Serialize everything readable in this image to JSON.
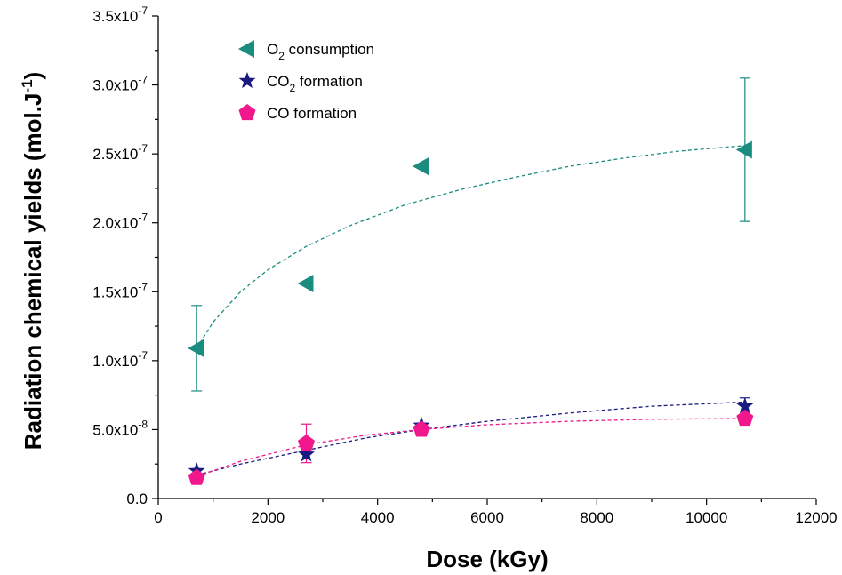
{
  "chart_data": {
    "type": "scatter",
    "xlabel": "Dose (kGy)",
    "ylabel": {
      "main": "Radiation chemical yields (mol.J",
      "sup": "-1",
      "tail": ")"
    },
    "xlim": [
      0,
      12000
    ],
    "ylim": [
      0,
      3.5e-07
    ],
    "x_ticks": [
      0,
      2000,
      4000,
      6000,
      8000,
      10000,
      12000
    ],
    "x_tick_labels": [
      "0",
      "2000",
      "4000",
      "6000",
      "8000",
      "10000",
      "12000"
    ],
    "y_ticks": [
      0,
      5e-08,
      1e-07,
      1.5e-07,
      2e-07,
      2.5e-07,
      3e-07,
      3.5e-07
    ],
    "y_tick_labels": [
      {
        "main": "0.0",
        "sup": ""
      },
      {
        "main": "5.0x10",
        "sup": "-8"
      },
      {
        "main": "1.0x10",
        "sup": "-7"
      },
      {
        "main": "1.5x10",
        "sup": "-7"
      },
      {
        "main": "2.0x10",
        "sup": "-7"
      },
      {
        "main": "2.5x10",
        "sup": "-7"
      },
      {
        "main": "3.0x10",
        "sup": "-7"
      },
      {
        "main": "3.5x10",
        "sup": "-7"
      }
    ],
    "grid": false,
    "legend_position": "top-left",
    "series": [
      {
        "name": "O2 consumption",
        "label_parts": [
          "O",
          "2",
          " consumption"
        ],
        "marker": "left-triangle",
        "color": "#1a8c80",
        "x": [
          700,
          2700,
          4800,
          10700
        ],
        "y": [
          1.09e-07,
          1.56e-07,
          2.41e-07,
          2.53e-07
        ],
        "err": [
          3.1e-08,
          null,
          null,
          5.2e-08
        ],
        "fit": {
          "x": [
            700,
            1000,
            1500,
            2000,
            2700,
            3500,
            4500,
            5500,
            6500,
            7500,
            8500,
            9500,
            10700
          ],
          "y": [
            1.09e-07,
            1.28e-07,
            1.5e-07,
            1.66e-07,
            1.83e-07,
            1.98e-07,
            2.13e-07,
            2.24e-07,
            2.33e-07,
            2.41e-07,
            2.47e-07,
            2.52e-07,
            2.56e-07
          ]
        }
      },
      {
        "name": "CO2 formation",
        "label_parts": [
          "CO",
          "2",
          " formation"
        ],
        "marker": "star",
        "color": "#1a1a80",
        "x": [
          700,
          2700,
          4800,
          10700
        ],
        "y": [
          2e-08,
          3.2e-08,
          5.3e-08,
          6.7e-08
        ],
        "err": [
          null,
          null,
          null,
          6e-09
        ],
        "fit": {
          "x": [
            700,
            1500,
            2700,
            3800,
            4800,
            6000,
            7500,
            9000,
            10700
          ],
          "y": [
            1.7e-08,
            2.5e-08,
            3.5e-08,
            4.4e-08,
            5e-08,
            5.6e-08,
            6.2e-08,
            6.7e-08,
            7e-08
          ]
        }
      },
      {
        "name": "CO formation",
        "label_parts": [
          "CO formation",
          "",
          ""
        ],
        "marker": "pentagon",
        "color": "#f0188c",
        "x": [
          700,
          2700,
          4800,
          10700
        ],
        "y": [
          1.5e-08,
          4e-08,
          5e-08,
          5.8e-08
        ],
        "err": [
          null,
          1.4e-08,
          null,
          null
        ],
        "fit": {
          "x": [
            700,
            1500,
            2700,
            3800,
            4800,
            6000,
            7500,
            9000,
            10700
          ],
          "y": [
            1.6e-08,
            2.7e-08,
            3.9e-08,
            4.6e-08,
            5e-08,
            5.35e-08,
            5.6e-08,
            5.75e-08,
            5.8e-08
          ]
        }
      }
    ]
  }
}
